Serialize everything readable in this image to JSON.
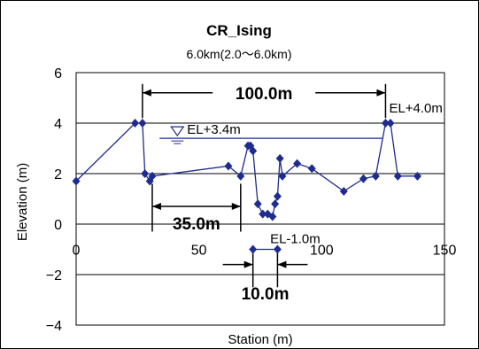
{
  "chart_data": {
    "type": "line",
    "title": "CR_Ising",
    "subtitle": "6.0km(2.0～6.0km)",
    "xlabel": "Station (m)",
    "ylabel": "Elevation (m)",
    "xlim": [
      0,
      150
    ],
    "ylim": [
      -4,
      6
    ],
    "x_ticks": [
      "0",
      "50",
      "100",
      "150"
    ],
    "y_ticks": [
      "−4",
      "−2",
      "0",
      "2",
      "4",
      "6"
    ],
    "grid": "horizontal",
    "colors": {
      "series": "#1f2c8f",
      "water": "#1f2c8f",
      "dims": "#000000"
    },
    "series": [
      {
        "x": [
          0,
          24,
          27,
          28,
          30,
          31,
          62,
          67,
          70,
          71,
          72,
          74,
          76,
          78,
          80,
          81,
          82,
          83,
          84,
          90,
          96,
          109,
          117,
          122,
          126,
          128,
          131,
          139
        ],
        "y": [
          1.7,
          4.0,
          4.0,
          2.0,
          1.7,
          1.9,
          2.3,
          1.9,
          3.1,
          3.1,
          2.9,
          0.8,
          0.4,
          0.4,
          0.3,
          0.8,
          1.1,
          2.6,
          1.9,
          2.4,
          2.2,
          1.3,
          1.8,
          1.9,
          4.0,
          4.0,
          1.9,
          1.9
        ]
      },
      {
        "x": [
          72,
          82
        ],
        "y": [
          -1.0,
          -1.0
        ]
      }
    ],
    "annotations": {
      "water_level": {
        "label": "EL+3.4m",
        "y": 3.4,
        "x_from": 34,
        "x_to": 125
      },
      "top_label": "EL+4.0m",
      "bottom_label": "EL-1.0m",
      "dim_top": {
        "label": "100.0m",
        "x_from": 27,
        "x_to": 126,
        "y": 5.2
      },
      "dim_mid": {
        "label": "35.0m",
        "x_from": 31,
        "x_to": 67,
        "y": 0.7
      },
      "dim_bottom": {
        "label": "10.0m",
        "x_from": 72,
        "x_to": 82,
        "y": -1.6
      }
    }
  }
}
